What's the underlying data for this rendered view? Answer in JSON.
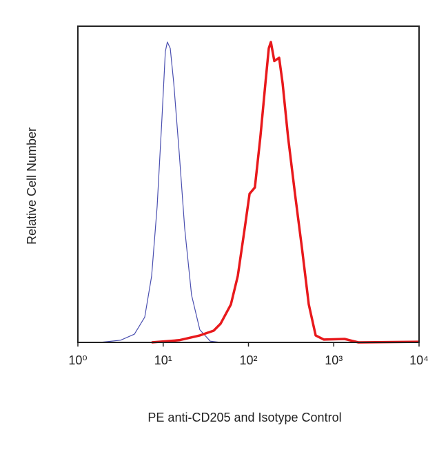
{
  "chart_data": {
    "type": "line",
    "xlabel": "PE anti-CD205 and Isotype Control",
    "ylabel": "Relative Cell Number",
    "xscale": "log",
    "xlim": [
      1,
      10000
    ],
    "xticks": [
      {
        "value": 1,
        "label": "10⁰"
      },
      {
        "value": 10,
        "label": "10¹"
      },
      {
        "value": 100,
        "label": "10²"
      },
      {
        "value": 1000,
        "label": "10³"
      },
      {
        "value": 10000,
        "label": "10⁴"
      }
    ],
    "ylim": [
      0,
      100
    ],
    "grid": false,
    "series": [
      {
        "color": "#4a4fb0",
        "width": 1.2,
        "x": [
          1.81,
          3.17,
          4.6,
          6.08,
          7.32,
          8.5,
          9.68,
          10.6,
          11.2,
          12.1,
          13.3,
          15.4,
          17.9,
          21.5,
          26.9,
          35.6,
          47.1
        ],
        "values": [
          0,
          0.7,
          2.6,
          8,
          21,
          43,
          71,
          92,
          95,
          93,
          82,
          60,
          36,
          15,
          4,
          0.4,
          0
        ]
      },
      {
        "color": "#e8191c",
        "width": 3.5,
        "x": [
          7.32,
          15.4,
          26.9,
          39.1,
          47.1,
          62.2,
          74.9,
          90.3,
          103,
          119,
          138,
          158,
          173,
          183,
          201,
          229,
          251,
          291,
          351,
          423,
          509,
          614,
          767,
          1340,
          1945,
          10000
        ],
        "values": [
          0,
          0.7,
          2.2,
          3.7,
          5.9,
          12,
          21,
          36,
          47,
          49,
          65,
          82,
          93,
          95,
          89,
          90,
          82,
          65,
          47,
          30,
          12,
          2.2,
          0.9,
          1.1,
          0,
          0.2
        ]
      }
    ]
  }
}
